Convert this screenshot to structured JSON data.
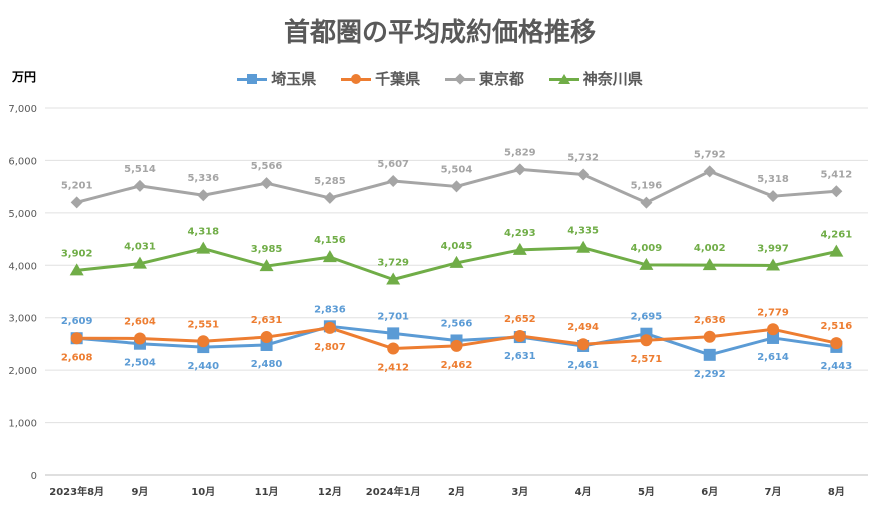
{
  "chart_data": {
    "type": "line",
    "title": "首都圏の平均成約価格推移",
    "ylabel": "万円",
    "xlabel": "",
    "ylim": [
      0,
      7000
    ],
    "yticks": [
      "0",
      "1,000",
      "2,000",
      "3,000",
      "4,000",
      "5,000",
      "6,000",
      "7,000"
    ],
    "categories": [
      "2023年8月",
      "9月",
      "10月",
      "11月",
      "12月",
      "2024年1月",
      "2月",
      "3月",
      "4月",
      "5月",
      "6月",
      "7月",
      "8月"
    ],
    "legend_position": "top",
    "series": [
      {
        "name": "埼玉県",
        "color": "#5b9bd5",
        "marker": "square",
        "values": [
          2609,
          2504,
          2440,
          2480,
          2836,
          2701,
          2566,
          2631,
          2461,
          2695,
          2292,
          2614,
          2443
        ],
        "labels": [
          "2,609",
          "2,504",
          "2,440",
          "2,480",
          "2,836",
          "2,701",
          "2,566",
          "2,631",
          "2,461",
          "2,695",
          "2,292",
          "2,614",
          "2,443"
        ]
      },
      {
        "name": "千葉県",
        "color": "#ed7d31",
        "marker": "circle",
        "values": [
          2608,
          2604,
          2551,
          2631,
          2807,
          2412,
          2462,
          2652,
          2494,
          2571,
          2636,
          2779,
          2516
        ],
        "labels": [
          "2,608",
          "2,604",
          "2,551",
          "2,631",
          "2,807",
          "2,412",
          "2,462",
          "2,652",
          "2,494",
          "2,571",
          "2,636",
          "2,779",
          "2,516"
        ]
      },
      {
        "name": "東京都",
        "color": "#a5a5a5",
        "marker": "diamond",
        "values": [
          5201,
          5514,
          5336,
          5566,
          5285,
          5607,
          5504,
          5829,
          5732,
          5196,
          5792,
          5318,
          5412
        ],
        "labels": [
          "5,201",
          "5,514",
          "5,336",
          "5,566",
          "5,285",
          "5,607",
          "5,504",
          "5,829",
          "5,732",
          "5,196",
          "5,792",
          "5,318",
          "5,412"
        ]
      },
      {
        "name": "神奈川県",
        "color": "#70ad47",
        "marker": "triangle",
        "values": [
          3902,
          4031,
          4318,
          3985,
          4156,
          3729,
          4045,
          4293,
          4335,
          4009,
          4002,
          3997,
          4261
        ],
        "labels": [
          "3,902",
          "4,031",
          "4,318",
          "3,985",
          "4,156",
          "3,729",
          "4,045",
          "4,293",
          "4,335",
          "4,009",
          "4,002",
          "3,997",
          "4,261"
        ]
      }
    ]
  }
}
